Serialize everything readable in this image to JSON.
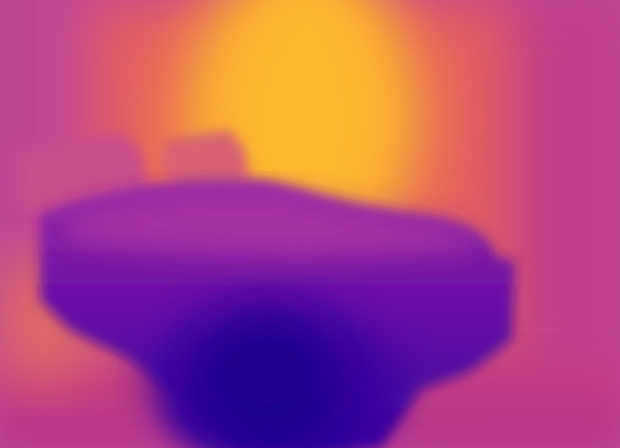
{
  "image": {
    "kind": "depth-map",
    "colormap": "plasma",
    "subject": "bed-in-room",
    "palette": {
      "far_yellow": "#fdb62f",
      "orange": "#f3844b",
      "pink_magenta": "#cc4678",
      "magenta": "#b73a92",
      "purple": "#7d16a8",
      "deep_violet": "#4a04a0",
      "near_indigo": "#1d068f"
    }
  }
}
